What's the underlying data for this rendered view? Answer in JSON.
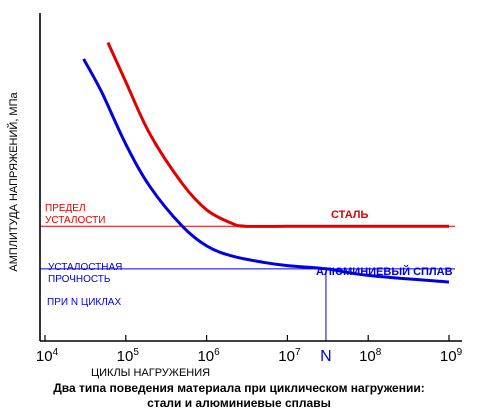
{
  "chart_data": {
    "type": "line",
    "title": "",
    "xlabel": "ЦИКЛЫ НАГРУЖЕНИЯ",
    "ylabel": "АМПЛИТУДА НАПРЯЖЕНИЙ, МПа",
    "xscale": "log",
    "xlim": [
      10000,
      1000000000
    ],
    "ylim": [
      0,
      100
    ],
    "x_ticks": [
      {
        "value": 10000,
        "base": "10",
        "exp": "4"
      },
      {
        "value": 100000,
        "base": "10",
        "exp": "5"
      },
      {
        "value": 1000000,
        "base": "10",
        "exp": "6"
      },
      {
        "value": 10000000,
        "base": "10",
        "exp": "7"
      },
      {
        "value": 100000000,
        "base": "10",
        "exp": "8"
      },
      {
        "value": 1000000000,
        "base": "10",
        "exp": "9"
      }
    ],
    "n_marker": {
      "x": 30000000,
      "label": "N"
    },
    "series": [
      {
        "name": "СТАЛЬ",
        "color": "#e00000",
        "x": [
          60000,
          100000,
          200000,
          500000,
          1000000,
          2000000,
          3000000,
          10000000,
          100000000,
          1000000000
        ],
        "y": [
          91,
          79,
          63,
          48,
          40,
          36,
          35,
          35,
          35,
          35
        ]
      },
      {
        "name": "АЛЮМИНИЕВЫЙ СПЛАВ",
        "color": "#0000e0",
        "x": [
          30000,
          50000,
          100000,
          200000,
          500000,
          1000000,
          2000000,
          5000000,
          10000000,
          30000000,
          100000000,
          1000000000
        ],
        "y": [
          86,
          76,
          60,
          47,
          35,
          29,
          26,
          24,
          23,
          22,
          20,
          18
        ]
      }
    ],
    "hlines": [
      {
        "y": 35,
        "color": "#e00000"
      },
      {
        "y": 22,
        "color": "#0000e0"
      }
    ],
    "annotations": {
      "fatigue_limit": [
        "ПРЕДЕЛ",
        "УСТАЛОСТИ"
      ],
      "fatigue_strength": [
        "УСТАЛОСТНАЯ",
        "ПРОЧНОСТЬ"
      ],
      "at_n_cycles": "ПРИ N ЦИКЛАХ"
    }
  },
  "caption": {
    "line1": "Два типа поведения материала при циклическом нагружении:",
    "line2": "стали и алюминиевые сплавы"
  }
}
